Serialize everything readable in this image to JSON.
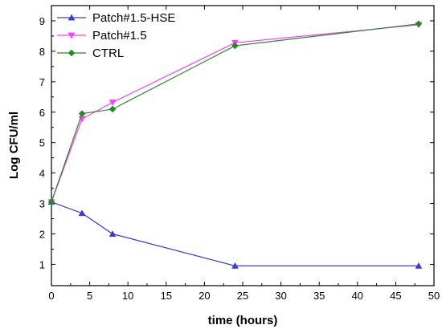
{
  "chart_data": {
    "type": "line",
    "xlabel": "time (hours)",
    "ylabel": "Log CFU/ml",
    "xlim": [
      0,
      50
    ],
    "ylim": [
      0.3,
      9.5
    ],
    "xticks": [
      0,
      5,
      10,
      15,
      20,
      25,
      30,
      35,
      40,
      45,
      50
    ],
    "yticks": [
      1,
      2,
      3,
      4,
      5,
      6,
      7,
      8,
      9
    ],
    "grid": false,
    "legend_position": "top-left",
    "series": [
      {
        "name": "Patch#1.5-HSE",
        "color": "#3b3bdc",
        "marker": "triangle-up",
        "x": [
          0,
          4,
          8,
          24,
          48
        ],
        "y": [
          3.05,
          2.68,
          2.0,
          0.95,
          0.95
        ]
      },
      {
        "name": "Patch#1.5",
        "color": "#ff3cff",
        "marker": "triangle-down",
        "x": [
          0,
          4,
          8,
          24,
          48
        ],
        "y": [
          3.05,
          5.78,
          6.32,
          8.28,
          8.87
        ]
      },
      {
        "name": "CTRL",
        "color": "#1e8c1e",
        "marker": "diamond",
        "x": [
          0,
          4,
          8,
          24,
          48
        ],
        "y": [
          3.05,
          5.95,
          6.1,
          8.18,
          8.9
        ]
      }
    ]
  }
}
